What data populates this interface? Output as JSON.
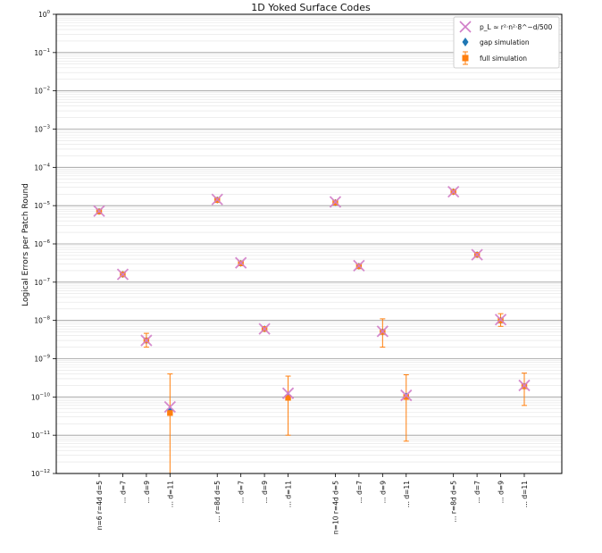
{
  "chart_data": {
    "type": "scatter",
    "title": "1D Yoked Surface Codes",
    "ylabel": "Logical Errors per Patch Round",
    "xlabel": "",
    "yscale": "log",
    "ylim": [
      1e-12,
      1
    ],
    "y_ticks": [
      {
        "base": "10",
        "exp": "0"
      },
      {
        "base": "10",
        "exp": "−1"
      },
      {
        "base": "10",
        "exp": "−2"
      },
      {
        "base": "10",
        "exp": "−3"
      },
      {
        "base": "10",
        "exp": "−4"
      },
      {
        "base": "10",
        "exp": "−5"
      },
      {
        "base": "10",
        "exp": "−6"
      },
      {
        "base": "10",
        "exp": "−7"
      },
      {
        "base": "10",
        "exp": "−8"
      },
      {
        "base": "10",
        "exp": "−9"
      },
      {
        "base": "10",
        "exp": "−10"
      },
      {
        "base": "10",
        "exp": "−11"
      },
      {
        "base": "10",
        "exp": "−12"
      }
    ],
    "grid": true,
    "legend_position": "top-right",
    "categories": [
      "n=6 r=4d d=5",
      "... d=7",
      "... d=9",
      "... d=11",
      "... r=8d d=5",
      "... d=7",
      "... d=9",
      "... d=11",
      "n=10 r=4d d=5",
      "... d=7",
      "... d=9",
      "... d=11",
      "... r=8d d=5",
      "... d=7",
      "... d=9",
      "... d=11"
    ],
    "x_positions": [
      0,
      1,
      2,
      3,
      5,
      6,
      7,
      8,
      10,
      11,
      12,
      13,
      15,
      16,
      17,
      18
    ],
    "series": [
      {
        "name": "p_L ≈ r²·n²·8^−d/500",
        "marker": "x",
        "color": "#d17ec8",
        "values": [
          7.2e-06,
          1.6e-07,
          3e-09,
          5.5e-11,
          1.45e-05,
          3.2e-07,
          6e-09,
          1.25e-10,
          1.25e-05,
          2.7e-07,
          5.2e-09,
          1.1e-10,
          2.3e-05,
          5.2e-07,
          1.05e-08,
          2e-10
        ]
      },
      {
        "name": "gap simulation",
        "marker": "diamond",
        "color": "#1f77b4",
        "values": [
          7e-06,
          1.6e-07,
          3e-09,
          4.5e-11,
          1.4e-05,
          3.1e-07,
          6e-09,
          1e-10,
          1.2e-05,
          2.6e-07,
          5e-09,
          1.05e-10,
          2.3e-05,
          5.2e-07,
          1e-08,
          1.9e-10
        ]
      },
      {
        "name": "full simulation",
        "marker": "square",
        "color": "#ff7f0e",
        "values": [
          7e-06,
          1.6e-07,
          3e-09,
          3.8e-11,
          1.4e-05,
          3.1e-07,
          6e-09,
          9.5e-11,
          1.2e-05,
          2.6e-07,
          5e-09,
          1e-10,
          2.3e-05,
          5.2e-07,
          1e-08,
          1.9e-10
        ],
        "err_low": [
          6.5e-06,
          1.45e-07,
          2e-09,
          1e-12,
          1.35e-05,
          2.9e-07,
          5.4e-09,
          1e-11,
          1.15e-05,
          2.4e-07,
          2e-09,
          7e-12,
          2.2e-05,
          4.9e-07,
          7e-09,
          6e-11
        ],
        "err_high": [
          7.6e-06,
          1.75e-07,
          4.6e-09,
          4e-10,
          1.5e-05,
          3.4e-07,
          6.6e-09,
          3.5e-10,
          1.3e-05,
          2.9e-07,
          1.1e-08,
          3.8e-10,
          2.5e-05,
          5.6e-07,
          1.5e-08,
          4.2e-10
        ]
      }
    ]
  },
  "legend": {
    "model_label": "p_L ≈ r²·n²·8^−d/500",
    "gap_label": "gap simulation",
    "full_label": "full simulation"
  }
}
